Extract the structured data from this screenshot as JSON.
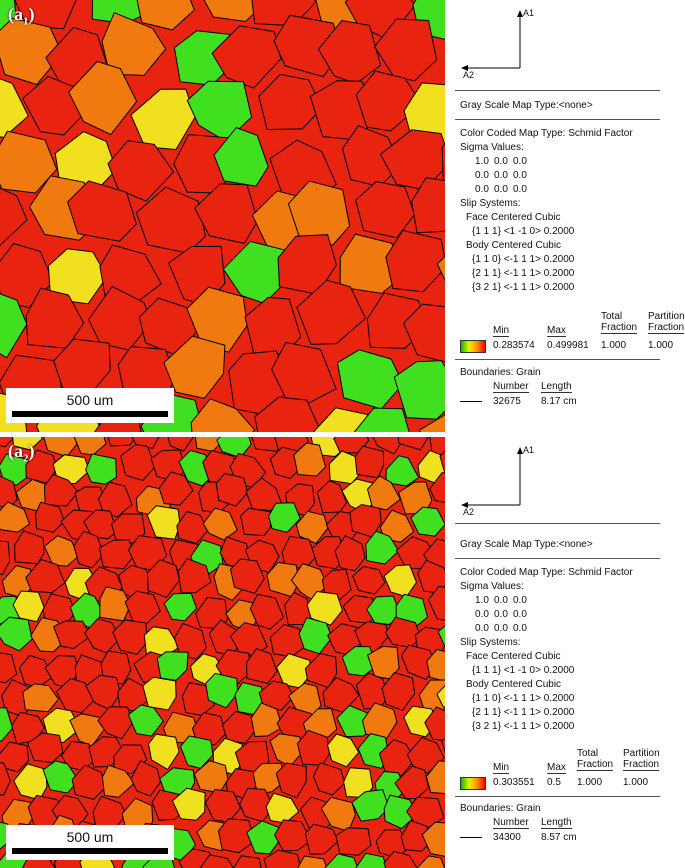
{
  "panels": [
    {
      "label_main": "a",
      "label_sub": "1",
      "scale_label": "500 um",
      "axes": {
        "a1": "A1",
        "a2": "A2"
      },
      "gray_scale": "Gray Scale Map Type:<none>",
      "color_map": "Color Coded Map Type: Schmid Factor",
      "sigma_title": "Sigma Values:",
      "sigma": [
        [
          "1.0",
          "0.0",
          "0.0"
        ],
        [
          "0.0",
          "0.0",
          "0.0"
        ],
        [
          "0.0",
          "0.0",
          "0.0"
        ]
      ],
      "slip_title": "Slip Systems:",
      "fcc_title": "Face Centered Cubic",
      "fcc": [
        "{1 1 1} <1 -1 0> 0.2000"
      ],
      "bcc_title": "Body Centered Cubic",
      "bcc": [
        "{1 1 0} <-1 1 1> 0.2000",
        "{2 1 1} <-1 1 1> 0.2000",
        "{3 2 1} <-1 1 1> 0.2000"
      ],
      "table_headers": {
        "min": "Min",
        "max": "Max",
        "total1": "Total",
        "total2": "Fraction",
        "part1": "Partition",
        "part2": "Fraction"
      },
      "table_values": {
        "min": "0.283574",
        "max": "0.499981",
        "total": "1.000",
        "partition": "1.000"
      },
      "boundaries_title": "Boundaries: Grain",
      "boundary_headers": {
        "number": "Number",
        "length": "Length"
      },
      "boundary_values": {
        "number": "32675",
        "length": "8.17 cm"
      }
    },
    {
      "label_main": "a",
      "label_sub": "2",
      "scale_label": "500 um",
      "axes": {
        "a1": "A1",
        "a2": "A2"
      },
      "gray_scale": "Gray Scale Map Type:<none>",
      "color_map": "Color Coded Map Type: Schmid Factor",
      "sigma_title": "Sigma Values:",
      "sigma": [
        [
          "1.0",
          "0.0",
          "0.0"
        ],
        [
          "0.0",
          "0.0",
          "0.0"
        ],
        [
          "0.0",
          "0.0",
          "0.0"
        ]
      ],
      "slip_title": "Slip Systems:",
      "fcc_title": "Face Centered Cubic",
      "fcc": [
        "{1 1 1} <1 -1 0> 0.2000"
      ],
      "bcc_title": "Body Centered Cubic",
      "bcc": [
        "{1 1 0} <-1 1 1> 0.2000",
        "{2 1 1} <-1 1 1> 0.2000",
        "{3 2 1} <-1 1 1> 0.2000"
      ],
      "table_headers": {
        "min": "Min",
        "max": "Max",
        "total1": "Total",
        "total2": "Fraction",
        "part1": "Partition",
        "part2": "Fraction"
      },
      "table_values": {
        "min": "0.303551",
        "max": "0.5",
        "total": "1.000",
        "partition": "1.000"
      },
      "boundaries_title": "Boundaries: Grain",
      "boundary_headers": {
        "number": "Number",
        "length": "Length"
      },
      "boundary_values": {
        "number": "34300",
        "length": "8.57 cm"
      }
    }
  ],
  "colors": {
    "red": "#e8230f",
    "orange": "#f07a10",
    "yellow": "#f0e020",
    "green": "#40e020"
  }
}
